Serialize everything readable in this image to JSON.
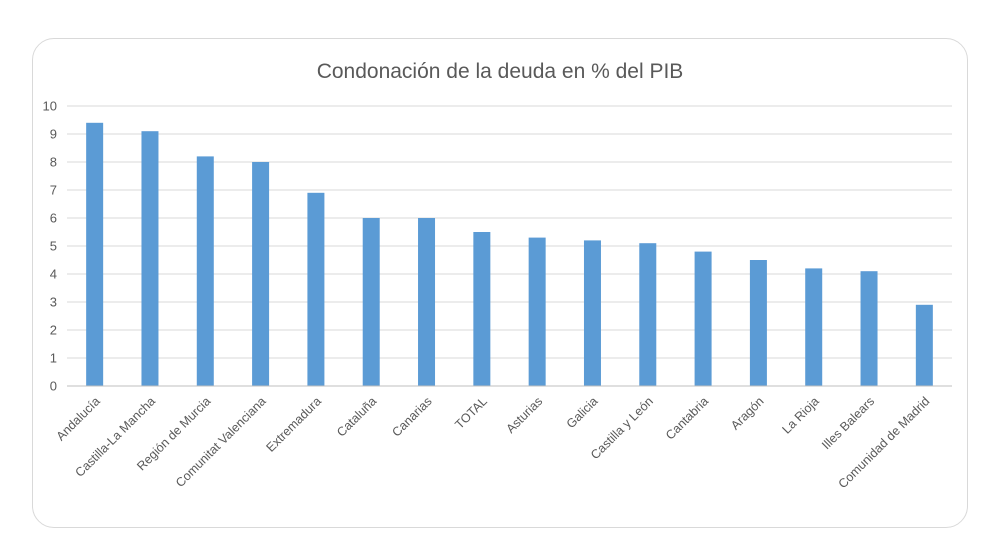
{
  "chart_data": {
    "type": "bar",
    "title": "Condonación de la deuda en % del PIB",
    "xlabel": "",
    "ylabel": "",
    "ylim": [
      0,
      10
    ],
    "yticks": [
      0,
      1,
      2,
      3,
      4,
      5,
      6,
      7,
      8,
      9,
      10
    ],
    "grid": true,
    "legend": "none",
    "bar_color": "#5b9bd5",
    "categories": [
      "Andalucía",
      "Castilla-La Mancha",
      "Región de Murcia",
      "Comunitat Valenciana",
      "Extremadura",
      "Cataluña",
      "Canarias",
      "TOTAL",
      "Asturias",
      "Galicia",
      "Castilla y León",
      "Cantabria",
      "Aragón",
      "La Rioja",
      "Illes Balears",
      "Comunidad de Madrid"
    ],
    "values": [
      9.4,
      9.1,
      8.2,
      8.0,
      6.9,
      6.0,
      6.0,
      5.5,
      5.3,
      5.2,
      5.1,
      4.8,
      4.5,
      4.2,
      4.1,
      2.9
    ]
  }
}
